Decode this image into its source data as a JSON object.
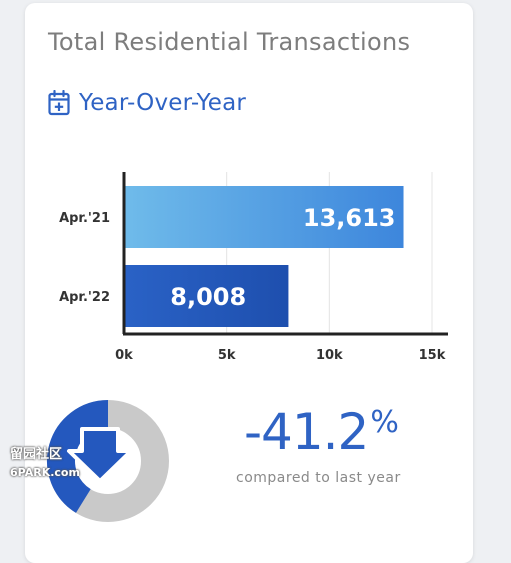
{
  "card": {
    "title": "Total Residential Transactions",
    "subtitle": "Year-Over-Year"
  },
  "colors": {
    "accent": "#2f63c4",
    "bar_2021": "#5aaae6",
    "bar_2022": "#2458be",
    "ring_gray": "#c9c9c9",
    "ring_blue": "#2458be"
  },
  "chart_data": {
    "type": "bar",
    "orientation": "horizontal",
    "categories": [
      "Apr.'21",
      "Apr.'22"
    ],
    "values": [
      13613,
      8008
    ],
    "value_labels": [
      "13,613",
      "8,008"
    ],
    "x_ticks": [
      0,
      5000,
      10000,
      15000
    ],
    "x_tick_labels": [
      "0k",
      "5k",
      "10k",
      "15k"
    ],
    "xlim": [
      0,
      15000
    ],
    "grid": true
  },
  "summary": {
    "change_value": "-41.2",
    "change_unit": "%",
    "change_fraction": 0.412,
    "compare_label": "compared to last year",
    "icon": "arrow-down-icon"
  },
  "watermark": {
    "line1": "留园社区",
    "line2": "6PARK.com"
  }
}
